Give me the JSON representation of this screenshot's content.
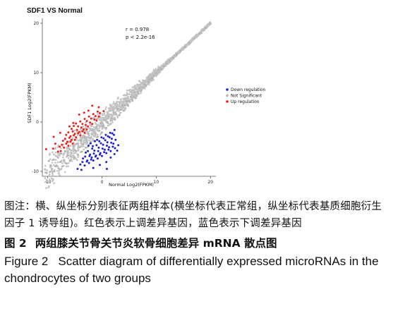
{
  "figure": {
    "title": "SDF1 VS Normal",
    "stats": [
      "r  =  0.978",
      "p < 2.2e-16"
    ]
  },
  "chart_data": {
    "type": "scatter",
    "title": "SDF1 VS Normal",
    "xlabel": "Normal Log2(FPKM)",
    "ylabel": "SDF1 Log2(FPKM)",
    "xlim": [
      -11,
      21
    ],
    "ylim": [
      -11,
      21
    ],
    "xticks": [
      -10,
      0,
      10,
      20
    ],
    "yticks": [
      -10,
      0,
      10,
      20
    ],
    "grid": false,
    "legend_position": "right",
    "annotation": [
      "r  =  0.978",
      "p < 2.2e-16"
    ],
    "series": [
      {
        "name": "Down regulation",
        "color": "#1f22c8",
        "points": [
          [
            -2.5,
            -4.8
          ],
          [
            -2.1,
            -4.3
          ],
          [
            -1.7,
            -4.9
          ],
          [
            -1.3,
            -3.9
          ],
          [
            -0.9,
            -3.6
          ],
          [
            -0.5,
            -3.9
          ],
          [
            -0.1,
            -3.1
          ],
          [
            0.3,
            -3.3
          ],
          [
            0.7,
            -2.6
          ],
          [
            1.1,
            -2.9
          ],
          [
            1.5,
            -2.2
          ],
          [
            1.9,
            -2.3
          ],
          [
            2.3,
            -1.6
          ],
          [
            -3.0,
            -6.2
          ],
          [
            -2.6,
            -5.9
          ],
          [
            -2.2,
            -6.6
          ],
          [
            -1.8,
            -5.4
          ],
          [
            -1.4,
            -5.8
          ],
          [
            -1.0,
            -4.7
          ],
          [
            -0.6,
            -5.2
          ],
          [
            -0.2,
            -4.3
          ],
          [
            0.2,
            -4.6
          ],
          [
            0.6,
            -3.7
          ],
          [
            1.0,
            -4.1
          ],
          [
            1.4,
            -3.1
          ],
          [
            1.8,
            -3.4
          ],
          [
            2.2,
            -2.6
          ],
          [
            -3.5,
            -7.4
          ],
          [
            -3.1,
            -7.0
          ],
          [
            -2.7,
            -7.8
          ],
          [
            -2.3,
            -6.9
          ],
          [
            -1.9,
            -7.2
          ],
          [
            -1.5,
            -6.4
          ],
          [
            -1.1,
            -6.8
          ],
          [
            -0.7,
            -5.9
          ],
          [
            -0.3,
            -6.3
          ],
          [
            0.1,
            -5.4
          ],
          [
            0.5,
            -5.6
          ],
          [
            0.9,
            -4.8
          ],
          [
            1.3,
            -5.1
          ],
          [
            1.7,
            -4.2
          ],
          [
            2.1,
            -4.4
          ],
          [
            2.5,
            -3.6
          ],
          [
            -4.0,
            -8.6
          ],
          [
            -3.6,
            -8.1
          ],
          [
            -3.2,
            -8.8
          ],
          [
            -2.8,
            -8.0
          ],
          [
            -2.4,
            -8.3
          ],
          [
            -2.0,
            -7.6
          ],
          [
            -1.6,
            -7.8
          ],
          [
            -1.2,
            -7.0
          ],
          [
            -0.8,
            -7.4
          ],
          [
            -0.4,
            -6.6
          ],
          [
            0.0,
            -6.9
          ],
          [
            0.4,
            -6.1
          ],
          [
            0.8,
            -6.3
          ],
          [
            1.2,
            -5.6
          ],
          [
            1.6,
            -5.9
          ],
          [
            2.0,
            -5.0
          ],
          [
            2.4,
            -5.3
          ],
          [
            -1.6,
            -9.3
          ],
          [
            -0.4,
            -8.7
          ],
          [
            0.8,
            -8.1
          ],
          [
            1.6,
            -7.2
          ],
          [
            2.3,
            -6.5
          ],
          [
            2.8,
            -5.8
          ],
          [
            3.0,
            -4.7
          ],
          [
            -4.5,
            -9.5
          ],
          [
            -3.8,
            -9.7
          ],
          [
            0.9,
            -9.5
          ]
        ]
      },
      {
        "name": "Not Significant",
        "color": "#b3b3b3",
        "points": [
          [
            -10.5,
            -9.6
          ],
          [
            -10.2,
            -10.3
          ],
          [
            -9.6,
            -10.1
          ],
          [
            -9.8,
            -7.9
          ],
          [
            -9.5,
            -8.8
          ],
          [
            -9.2,
            -9.5
          ],
          [
            -8.9,
            -7.6
          ],
          [
            -8.8,
            -10.0
          ],
          [
            -8.5,
            -8.9
          ],
          [
            -8.1,
            -7.2
          ],
          [
            -8.0,
            -9.4
          ],
          [
            -7.7,
            -8.1
          ],
          [
            -7.5,
            -6.4
          ],
          [
            -7.3,
            -9.0
          ],
          [
            -7.0,
            -7.7
          ],
          [
            -6.8,
            -5.9
          ],
          [
            -6.6,
            -8.4
          ],
          [
            -6.3,
            -6.8
          ],
          [
            -6.0,
            -5.5
          ],
          [
            -5.9,
            -7.9
          ],
          [
            -5.6,
            -6.3
          ],
          [
            -5.3,
            -4.9
          ],
          [
            -5.2,
            -7.2
          ],
          [
            -4.9,
            -5.8
          ],
          [
            -4.6,
            -4.4
          ],
          [
            -4.4,
            -6.7
          ],
          [
            -4.2,
            -5.1
          ],
          [
            -3.9,
            -3.7
          ],
          [
            -3.7,
            -6.0
          ],
          [
            -3.5,
            -4.5
          ],
          [
            -3.2,
            -3.1
          ],
          [
            -3.0,
            -5.2
          ],
          [
            -2.8,
            -3.9
          ],
          [
            -2.5,
            -2.4
          ],
          [
            -2.3,
            -4.5
          ],
          [
            -2.0,
            -3.1
          ],
          [
            -1.8,
            -1.7
          ],
          [
            -1.5,
            -3.8
          ],
          [
            -1.2,
            -2.4
          ],
          [
            -1.0,
            -1.1
          ],
          [
            -0.8,
            -3.0
          ],
          [
            -0.5,
            -1.8
          ],
          [
            -0.2,
            -0.3
          ],
          [
            0.0,
            -2.1
          ],
          [
            0.2,
            -0.8
          ],
          [
            0.5,
            0.4
          ],
          [
            0.8,
            -1.2
          ],
          [
            1.0,
            0.0
          ],
          [
            1.3,
            1.1
          ],
          [
            1.6,
            -0.4
          ],
          [
            1.8,
            0.8
          ],
          [
            2.1,
            1.9
          ],
          [
            2.4,
            0.5
          ],
          [
            2.6,
            1.6
          ],
          [
            2.9,
            2.6
          ],
          [
            3.2,
            1.4
          ],
          [
            3.4,
            2.5
          ],
          [
            3.7,
            3.4
          ],
          [
            4.0,
            2.3
          ],
          [
            4.2,
            3.3
          ],
          [
            4.5,
            4.2
          ],
          [
            4.8,
            3.3
          ],
          [
            5.0,
            4.2
          ],
          [
            5.3,
            5.1
          ],
          [
            5.6,
            4.3
          ],
          [
            5.8,
            5.0
          ],
          [
            6.1,
            6.0
          ],
          [
            6.4,
            5.3
          ],
          [
            6.6,
            6.0
          ],
          [
            6.9,
            6.8
          ],
          [
            7.2,
            6.3
          ],
          [
            7.5,
            7.0
          ],
          [
            7.8,
            7.7
          ],
          [
            8.1,
            7.3
          ],
          [
            8.5,
            8.2
          ],
          [
            8.8,
            8.6
          ],
          [
            9.2,
            8.9
          ],
          [
            9.6,
            9.4
          ],
          [
            10.0,
            9.9
          ],
          [
            10.4,
            10.5
          ],
          [
            10.9,
            10.7
          ],
          [
            11.4,
            11.3
          ],
          [
            11.9,
            11.8
          ],
          [
            12.5,
            12.4
          ],
          [
            13.1,
            13.0
          ],
          [
            13.8,
            13.7
          ],
          [
            14.5,
            14.4
          ],
          [
            15.3,
            15.2
          ],
          [
            16.1,
            16.0
          ],
          [
            17.0,
            16.9
          ],
          [
            18.0,
            17.9
          ],
          [
            19.1,
            19.0
          ],
          [
            20.0,
            19.9
          ]
        ]
      },
      {
        "name": "Up regulation",
        "color": "#e8231f",
        "points": [
          [
            -6.0,
            -0.9
          ],
          [
            -5.6,
            -1.4
          ],
          [
            -5.2,
            -0.8
          ],
          [
            -4.8,
            -0.3
          ],
          [
            -4.4,
            -0.9
          ],
          [
            -4.0,
            0.1
          ],
          [
            -3.6,
            -0.4
          ],
          [
            -3.2,
            0.6
          ],
          [
            -2.8,
            0.2
          ],
          [
            -2.4,
            1.1
          ],
          [
            -2.0,
            0.7
          ],
          [
            -1.6,
            1.6
          ],
          [
            -1.2,
            1.2
          ],
          [
            -0.8,
            2.1
          ],
          [
            -0.4,
            1.8
          ],
          [
            -6.6,
            -2.6
          ],
          [
            -6.2,
            -2.1
          ],
          [
            -5.8,
            -2.9
          ],
          [
            -5.4,
            -1.9
          ],
          [
            -5.0,
            -2.4
          ],
          [
            -4.6,
            -1.6
          ],
          [
            -4.2,
            -2.0
          ],
          [
            -3.8,
            -1.1
          ],
          [
            -3.4,
            -1.5
          ],
          [
            -3.0,
            -0.6
          ],
          [
            -2.6,
            -0.9
          ],
          [
            -2.2,
            -0.1
          ],
          [
            -1.8,
            -0.4
          ],
          [
            -1.4,
            0.5
          ],
          [
            -1.0,
            0.3
          ],
          [
            -0.6,
            1.1
          ],
          [
            -7.2,
            -3.8
          ],
          [
            -6.8,
            -3.4
          ],
          [
            -6.4,
            -4.0
          ],
          [
            -6.0,
            -3.2
          ],
          [
            -5.6,
            -3.6
          ],
          [
            -5.2,
            -2.7
          ],
          [
            -4.8,
            -3.1
          ],
          [
            -4.4,
            -2.3
          ],
          [
            -4.0,
            -2.7
          ],
          [
            -3.6,
            -1.9
          ],
          [
            -3.2,
            -2.2
          ],
          [
            -2.8,
            -1.5
          ],
          [
            -7.8,
            -5.0
          ],
          [
            -7.4,
            -4.6
          ],
          [
            -7.0,
            -5.2
          ],
          [
            -6.6,
            -4.4
          ],
          [
            -6.2,
            -4.8
          ],
          [
            -5.8,
            -4.0
          ],
          [
            -5.4,
            -4.4
          ],
          [
            -5.0,
            -3.6
          ],
          [
            -8.6,
            -4.4
          ],
          [
            -8.1,
            -6.0
          ],
          [
            -7.6,
            -5.9
          ],
          [
            -9.0,
            -5.4
          ],
          [
            -10.3,
            -5.5
          ],
          [
            -8.9,
            -3.0
          ],
          [
            -7.7,
            -2.2
          ],
          [
            -5.3,
            -0.2
          ],
          [
            -4.2,
            1.5
          ],
          [
            -2.5,
            2.3
          ],
          [
            -1.8,
            3.3
          ],
          [
            -0.6,
            3.0
          ],
          [
            0.3,
            2.2
          ],
          [
            -3.3,
            1.9
          ]
        ]
      }
    ]
  },
  "note": "图注：横、纵坐标分别表征两组样本(横坐标代表正常组，纵坐标代表基质细胞衍生因子 1 诱导组)。红色表示上调差异基因，蓝色表示下调差异基因",
  "caption_cn": {
    "num": "图 2",
    "text": "两组膝关节骨关节炎软骨细胞差异 mRNA 散点图"
  },
  "caption_en": {
    "num": "Figure 2",
    "text": "Scatter diagram of differentially expressed microRNAs in the chondrocytes of two groups"
  }
}
